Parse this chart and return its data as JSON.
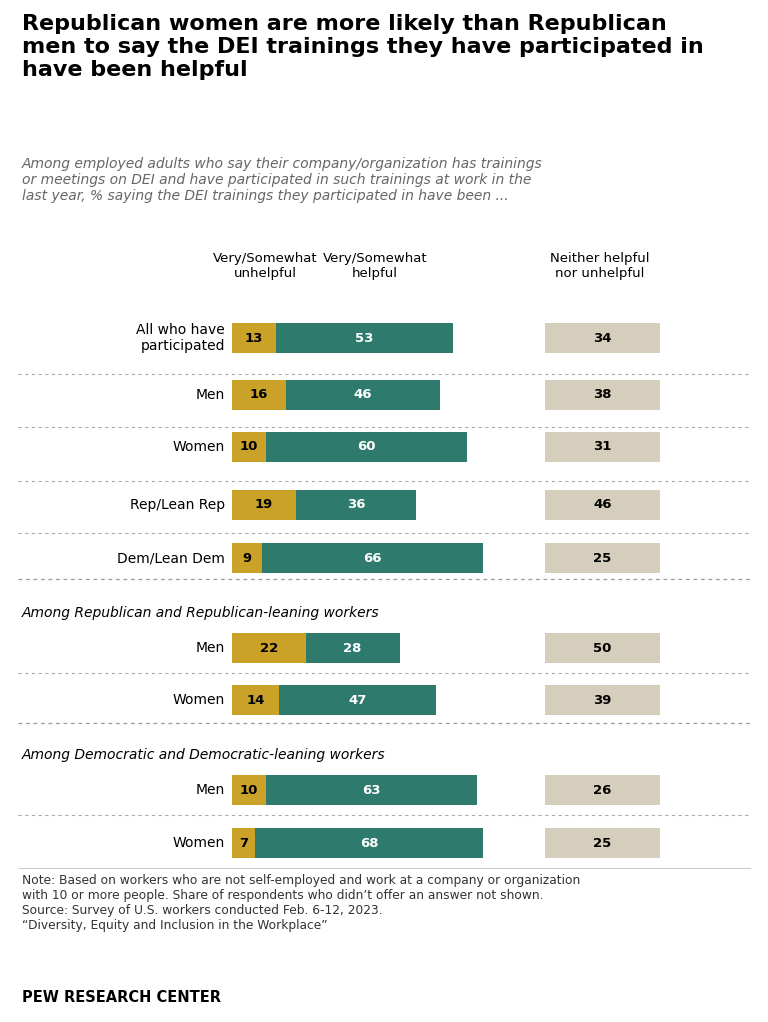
{
  "title": "Republican women are more likely than Republican\nmen to say the DEI trainings they have participated in\nhave been helpful",
  "subtitle": "Among employed adults who say their company/organization has trainings\nor meetings on DEI and have participated in such trainings at work in the\nlast year, % saying the DEI trainings they participated in have been ...",
  "col_headers": [
    "Very/Somewhat\nunhelpful",
    "Very/Somewhat\nhelpful",
    "Neither helpful\nnor unhelpful"
  ],
  "rows": [
    {
      "label": "All who have\nparticipated",
      "unhelpful": 13,
      "helpful": 53,
      "neither": 34
    },
    {
      "label": "Men",
      "unhelpful": 16,
      "helpful": 46,
      "neither": 38
    },
    {
      "label": "Women",
      "unhelpful": 10,
      "helpful": 60,
      "neither": 31
    },
    {
      "label": "Rep/Lean Rep",
      "unhelpful": 19,
      "helpful": 36,
      "neither": 46
    },
    {
      "label": "Dem/Lean Dem",
      "unhelpful": 9,
      "helpful": 66,
      "neither": 25
    },
    {
      "label": "Men",
      "unhelpful": 22,
      "helpful": 28,
      "neither": 50
    },
    {
      "label": "Women",
      "unhelpful": 14,
      "helpful": 47,
      "neither": 39
    },
    {
      "label": "Men",
      "unhelpful": 10,
      "helpful": 63,
      "neither": 26
    },
    {
      "label": "Women",
      "unhelpful": 7,
      "helpful": 68,
      "neither": 25
    }
  ],
  "section_labels": {
    "rep": "Among Republican and Republican-leaning workers",
    "dem": "Among Democratic and Democratic-leaning workers"
  },
  "colors": {
    "unhelpful": "#C9A227",
    "helpful": "#2E7B6E",
    "neither": "#D5CEBC"
  },
  "note": "Note: Based on workers who are not self-employed and work at a company or organization\nwith 10 or more people. Share of respondents who didn’t offer an answer not shown.\nSource: Survey of U.S. workers conducted Feb. 6-12, 2023.\n“Diversity, Equity and Inclusion in the Workplace”",
  "footer": "PEW RESEARCH CENTER",
  "background": "#FFFFFF",
  "title_fontsize": 16,
  "subtitle_fontsize": 10,
  "label_fontsize": 10,
  "bar_label_fontsize": 9.5,
  "header_fontsize": 9.5,
  "note_fontsize": 8.8,
  "footer_fontsize": 10.5
}
